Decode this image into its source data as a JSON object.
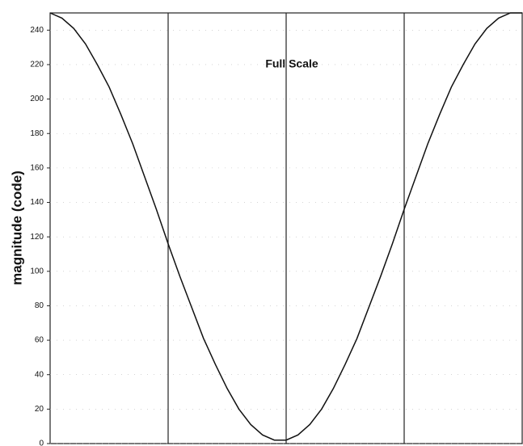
{
  "chart_data": {
    "type": "line",
    "title": "Full Scale",
    "y_label": "magnitude (code)",
    "x": [
      0,
      1,
      2,
      3,
      4,
      5,
      6,
      7,
      8,
      9,
      10,
      11,
      12,
      13,
      14,
      15,
      16,
      17,
      18,
      19,
      20,
      21,
      22,
      23,
      24,
      25,
      26,
      27,
      28,
      29,
      30,
      31,
      32,
      33,
      34,
      35,
      36,
      37,
      38,
      39,
      40
    ],
    "values": [
      250,
      247,
      241,
      232,
      220,
      207,
      191,
      174,
      155,
      136,
      116,
      97,
      79,
      61,
      46,
      32,
      20,
      11,
      5,
      2,
      2,
      5,
      11,
      20,
      32,
      46,
      61,
      79,
      97,
      116,
      136,
      155,
      174,
      191,
      207,
      220,
      232,
      241,
      247,
      250,
      250
    ],
    "color": "#111111",
    "xlim": [
      0,
      40
    ],
    "xticks": [
      10,
      20,
      30
    ],
    "ylim": [
      0,
      250
    ],
    "yticks": [
      0,
      20,
      40,
      60,
      80,
      100,
      120,
      140,
      160,
      180,
      200,
      220,
      240
    ],
    "grid": true
  }
}
